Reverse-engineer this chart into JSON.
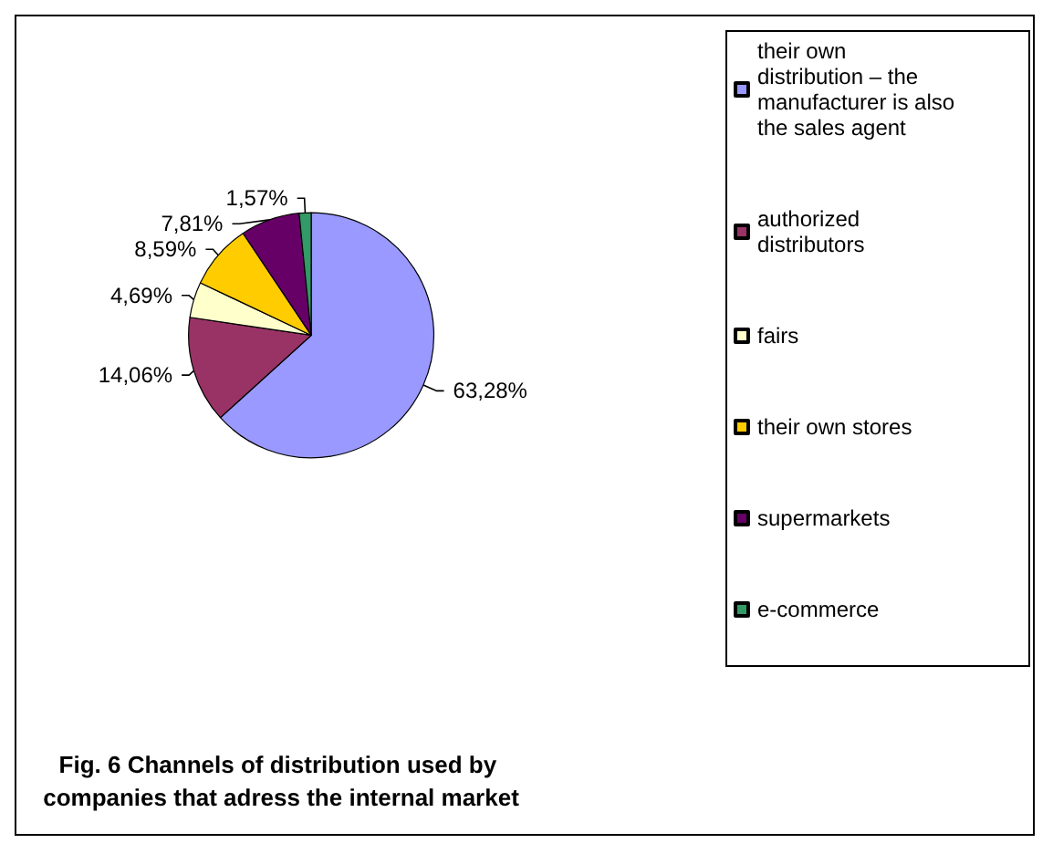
{
  "chart_data": {
    "type": "pie",
    "title": "Fig. 6 Channels of distribution used by companies that adress the internal market",
    "categories": [
      "their own distribution – the manufacturer is also the sales agent",
      "authorized distributors",
      "fairs",
      "their own stores",
      "supermarkets",
      "e-commerce"
    ],
    "values": [
      63.28,
      14.06,
      4.69,
      8.59,
      7.81,
      1.57
    ],
    "colors": [
      "#9999ff",
      "#993366",
      "#ffffcc",
      "#ffcc00",
      "#660066",
      "#339966"
    ],
    "value_labels": [
      "63,28%",
      "14,06%",
      "4,69%",
      "8,59%",
      "7,81%",
      "1,57%"
    ],
    "legend": "right"
  }
}
